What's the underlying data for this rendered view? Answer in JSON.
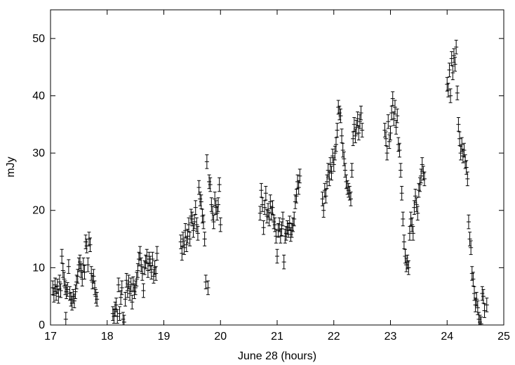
{
  "chart_data": {
    "type": "scatter",
    "xlabel": "June 28 (hours)",
    "ylabel": "mJy",
    "xlim": [
      17,
      25
    ],
    "ylim": [
      0,
      55
    ],
    "xticks": [
      17,
      18,
      19,
      20,
      21,
      22,
      23,
      24,
      25
    ],
    "yticks": [
      0,
      10,
      20,
      30,
      40,
      50
    ],
    "grid": false,
    "marker": "plus with vertical error bars",
    "series": [
      {
        "error_bar_mJy": 1.2,
        "points": [
          [
            17.04,
            6.5
          ],
          [
            17.06,
            5.2
          ],
          [
            17.08,
            7.0
          ],
          [
            17.1,
            5.5
          ],
          [
            17.12,
            6.8
          ],
          [
            17.14,
            5.0
          ],
          [
            17.16,
            7.5
          ],
          [
            17.18,
            6.0
          ],
          [
            17.2,
            12.0
          ],
          [
            17.22,
            9.5
          ],
          [
            17.24,
            8.0
          ],
          [
            17.26,
            6.5
          ],
          [
            17.28,
            5.8
          ],
          [
            17.3,
            6.2
          ],
          [
            17.32,
            10.2
          ],
          [
            17.34,
            5.5
          ],
          [
            17.36,
            4.5
          ],
          [
            17.38,
            3.8
          ],
          [
            17.4,
            5.0
          ],
          [
            17.42,
            4.2
          ],
          [
            17.44,
            5.8
          ],
          [
            17.46,
            7.5
          ],
          [
            17.48,
            8.5
          ],
          [
            17.5,
            10.5
          ],
          [
            17.52,
            11.0
          ],
          [
            17.54,
            9.5
          ],
          [
            17.56,
            8.0
          ],
          [
            17.58,
            10.5
          ],
          [
            17.6,
            9.2
          ],
          [
            17.62,
            14.5
          ],
          [
            17.64,
            13.8
          ],
          [
            17.66,
            10.5
          ],
          [
            17.68,
            15.0
          ],
          [
            17.7,
            14.0
          ],
          [
            17.72,
            9.0
          ],
          [
            17.74,
            7.5
          ],
          [
            17.76,
            8.5
          ],
          [
            17.78,
            6.5
          ],
          [
            17.8,
            5.0
          ],
          [
            17.82,
            4.5
          ],
          [
            17.27,
            1.0
          ],
          [
            18.1,
            2.0
          ],
          [
            18.12,
            1.5
          ],
          [
            18.14,
            2.8
          ],
          [
            18.16,
            3.5
          ],
          [
            18.18,
            1.5
          ],
          [
            18.2,
            7.0
          ],
          [
            18.22,
            2.0
          ],
          [
            18.24,
            4.8
          ],
          [
            18.26,
            6.5
          ],
          [
            18.28,
            1.0
          ],
          [
            18.3,
            0.5
          ],
          [
            18.32,
            4.5
          ],
          [
            18.34,
            7.8
          ],
          [
            18.36,
            6.0
          ],
          [
            18.38,
            7.5
          ],
          [
            18.4,
            5.5
          ],
          [
            18.42,
            7.0
          ],
          [
            18.44,
            4.0
          ],
          [
            18.46,
            7.2
          ],
          [
            18.48,
            5.8
          ],
          [
            18.5,
            6.5
          ],
          [
            18.52,
            8.0
          ],
          [
            18.54,
            9.5
          ],
          [
            18.56,
            11.5
          ],
          [
            18.58,
            12.5
          ],
          [
            18.6,
            10.5
          ],
          [
            18.62,
            9.0
          ],
          [
            18.64,
            6.0
          ],
          [
            18.66,
            10.0
          ],
          [
            18.68,
            11.0
          ],
          [
            18.7,
            12.0
          ],
          [
            18.72,
            9.5
          ],
          [
            18.74,
            11.5
          ],
          [
            18.76,
            10.8
          ],
          [
            18.78,
            9.2
          ],
          [
            18.8,
            11.5
          ],
          [
            18.82,
            8.5
          ],
          [
            18.84,
            10.0
          ],
          [
            18.86,
            9.0
          ],
          [
            18.88,
            12.5
          ],
          [
            19.3,
            14.5
          ],
          [
            19.32,
            12.5
          ],
          [
            19.34,
            15.0
          ],
          [
            19.36,
            13.5
          ],
          [
            19.38,
            16.5
          ],
          [
            19.4,
            14.0
          ],
          [
            19.42,
            15.5
          ],
          [
            19.44,
            17.5
          ],
          [
            19.46,
            15.0
          ],
          [
            19.48,
            19.0
          ],
          [
            19.5,
            18.5
          ],
          [
            19.52,
            16.5
          ],
          [
            19.54,
            18.0
          ],
          [
            19.56,
            20.5
          ],
          [
            19.58,
            17.5
          ],
          [
            19.6,
            16.0
          ],
          [
            19.62,
            24.0
          ],
          [
            19.64,
            22.0
          ],
          [
            19.66,
            21.5
          ],
          [
            19.68,
            19.0
          ],
          [
            19.7,
            18.0
          ],
          [
            19.72,
            15.0
          ],
          [
            19.74,
            7.5
          ],
          [
            19.76,
            28.5
          ],
          [
            19.78,
            6.5
          ],
          [
            19.8,
            25.0
          ],
          [
            19.82,
            24.5
          ],
          [
            19.84,
            21.0
          ],
          [
            19.86,
            19.5
          ],
          [
            19.88,
            18.0
          ],
          [
            19.9,
            22.0
          ],
          [
            19.92,
            20.5
          ],
          [
            19.94,
            19.5
          ],
          [
            19.96,
            21.0
          ],
          [
            19.98,
            24.5
          ],
          [
            20.0,
            17.5
          ],
          [
            20.7,
            19.5
          ],
          [
            20.72,
            23.5
          ],
          [
            20.74,
            21.0
          ],
          [
            20.76,
            17.0
          ],
          [
            20.78,
            20.5
          ],
          [
            20.8,
            23.0
          ],
          [
            20.82,
            19.0
          ],
          [
            20.84,
            20.0
          ],
          [
            20.86,
            18.5
          ],
          [
            20.88,
            21.5
          ],
          [
            20.9,
            19.5
          ],
          [
            20.92,
            20.5
          ],
          [
            20.94,
            18.0
          ],
          [
            20.96,
            17.5
          ],
          [
            20.98,
            15.5
          ],
          [
            21.0,
            12.0
          ],
          [
            21.02,
            16.5
          ],
          [
            21.04,
            17.5
          ],
          [
            21.06,
            15.5
          ],
          [
            21.08,
            16.8
          ],
          [
            21.1,
            18.5
          ],
          [
            21.12,
            11.0
          ],
          [
            21.14,
            15.5
          ],
          [
            21.16,
            16.0
          ],
          [
            21.18,
            17.0
          ],
          [
            21.2,
            16.5
          ],
          [
            21.22,
            17.8
          ],
          [
            21.24,
            15.8
          ],
          [
            21.26,
            16.5
          ],
          [
            21.28,
            17.5
          ],
          [
            21.3,
            18.5
          ],
          [
            21.32,
            21.5
          ],
          [
            21.34,
            22.5
          ],
          [
            21.36,
            25.0
          ],
          [
            21.38,
            24.0
          ],
          [
            21.4,
            26.0
          ],
          [
            21.8,
            22.0
          ],
          [
            21.82,
            20.0
          ],
          [
            21.84,
            23.5
          ],
          [
            21.86,
            22.5
          ],
          [
            21.88,
            25.0
          ],
          [
            21.9,
            27.0
          ],
          [
            21.92,
            25.5
          ],
          [
            21.94,
            28.0
          ],
          [
            21.96,
            26.5
          ],
          [
            21.98,
            29.5
          ],
          [
            22.0,
            28.0
          ],
          [
            22.02,
            30.0
          ],
          [
            22.04,
            31.5
          ],
          [
            22.06,
            34.0
          ],
          [
            22.08,
            38.0
          ],
          [
            22.1,
            37.0
          ],
          [
            22.12,
            36.5
          ],
          [
            22.14,
            33.0
          ],
          [
            22.16,
            30.5
          ],
          [
            22.18,
            29.0
          ],
          [
            22.2,
            27.0
          ],
          [
            22.22,
            25.0
          ],
          [
            22.24,
            24.0
          ],
          [
            22.26,
            23.5
          ],
          [
            22.28,
            23.0
          ],
          [
            22.3,
            22.0
          ],
          [
            22.32,
            27.0
          ],
          [
            22.34,
            32.5
          ],
          [
            22.36,
            35.0
          ],
          [
            22.38,
            33.0
          ],
          [
            22.4,
            34.5
          ],
          [
            22.42,
            36.0
          ],
          [
            22.44,
            33.5
          ],
          [
            22.46,
            35.5
          ],
          [
            22.48,
            37.0
          ],
          [
            22.5,
            34.0
          ],
          [
            22.9,
            34.0
          ],
          [
            22.92,
            32.5
          ],
          [
            22.94,
            30.0
          ],
          [
            22.96,
            35.5
          ],
          [
            22.98,
            32.0
          ],
          [
            23.0,
            33.5
          ],
          [
            23.02,
            37.0
          ],
          [
            23.04,
            39.5
          ],
          [
            23.06,
            36.0
          ],
          [
            23.08,
            38.0
          ],
          [
            23.1,
            34.5
          ],
          [
            23.12,
            36.5
          ],
          [
            23.14,
            31.5
          ],
          [
            23.16,
            30.5
          ],
          [
            23.18,
            27.0
          ],
          [
            23.2,
            23.0
          ],
          [
            23.22,
            18.5
          ],
          [
            23.24,
            14.5
          ],
          [
            23.26,
            12.0
          ],
          [
            23.28,
            10.5
          ],
          [
            23.3,
            11.0
          ],
          [
            23.32,
            10.0
          ],
          [
            23.34,
            16.0
          ],
          [
            23.36,
            18.5
          ],
          [
            23.38,
            17.5
          ],
          [
            23.4,
            16.0
          ],
          [
            23.42,
            20.5
          ],
          [
            23.44,
            22.5
          ],
          [
            23.46,
            21.0
          ],
          [
            23.48,
            19.5
          ],
          [
            23.5,
            23.5
          ],
          [
            23.52,
            24.5
          ],
          [
            23.54,
            26.0
          ],
          [
            23.56,
            28.0
          ],
          [
            23.58,
            26.5
          ],
          [
            23.6,
            25.5
          ],
          [
            24.0,
            42.0
          ],
          [
            24.02,
            41.0
          ],
          [
            24.04,
            44.5
          ],
          [
            24.06,
            40.0
          ],
          [
            24.08,
            46.5
          ],
          [
            24.1,
            44.0
          ],
          [
            24.12,
            47.0
          ],
          [
            24.14,
            45.5
          ],
          [
            24.16,
            48.5
          ],
          [
            24.18,
            40.5
          ],
          [
            24.2,
            35.0
          ],
          [
            24.22,
            32.5
          ],
          [
            24.24,
            30.0
          ],
          [
            24.26,
            31.5
          ],
          [
            24.28,
            29.5
          ],
          [
            24.3,
            30.5
          ],
          [
            24.32,
            28.5
          ],
          [
            24.34,
            27.5
          ],
          [
            24.36,
            25.5
          ],
          [
            24.38,
            18.0
          ],
          [
            24.4,
            15.0
          ],
          [
            24.42,
            13.5
          ],
          [
            24.44,
            9.0
          ],
          [
            24.46,
            8.0
          ],
          [
            24.48,
            5.5
          ],
          [
            24.5,
            3.5
          ],
          [
            24.52,
            4.5
          ],
          [
            24.54,
            3.0
          ],
          [
            24.56,
            1.0
          ],
          [
            24.58,
            0.5
          ],
          [
            24.6,
            0.2
          ],
          [
            24.62,
            5.5
          ],
          [
            24.64,
            5.0
          ],
          [
            24.66,
            2.5
          ],
          [
            24.7,
            3.5
          ]
        ]
      }
    ]
  }
}
